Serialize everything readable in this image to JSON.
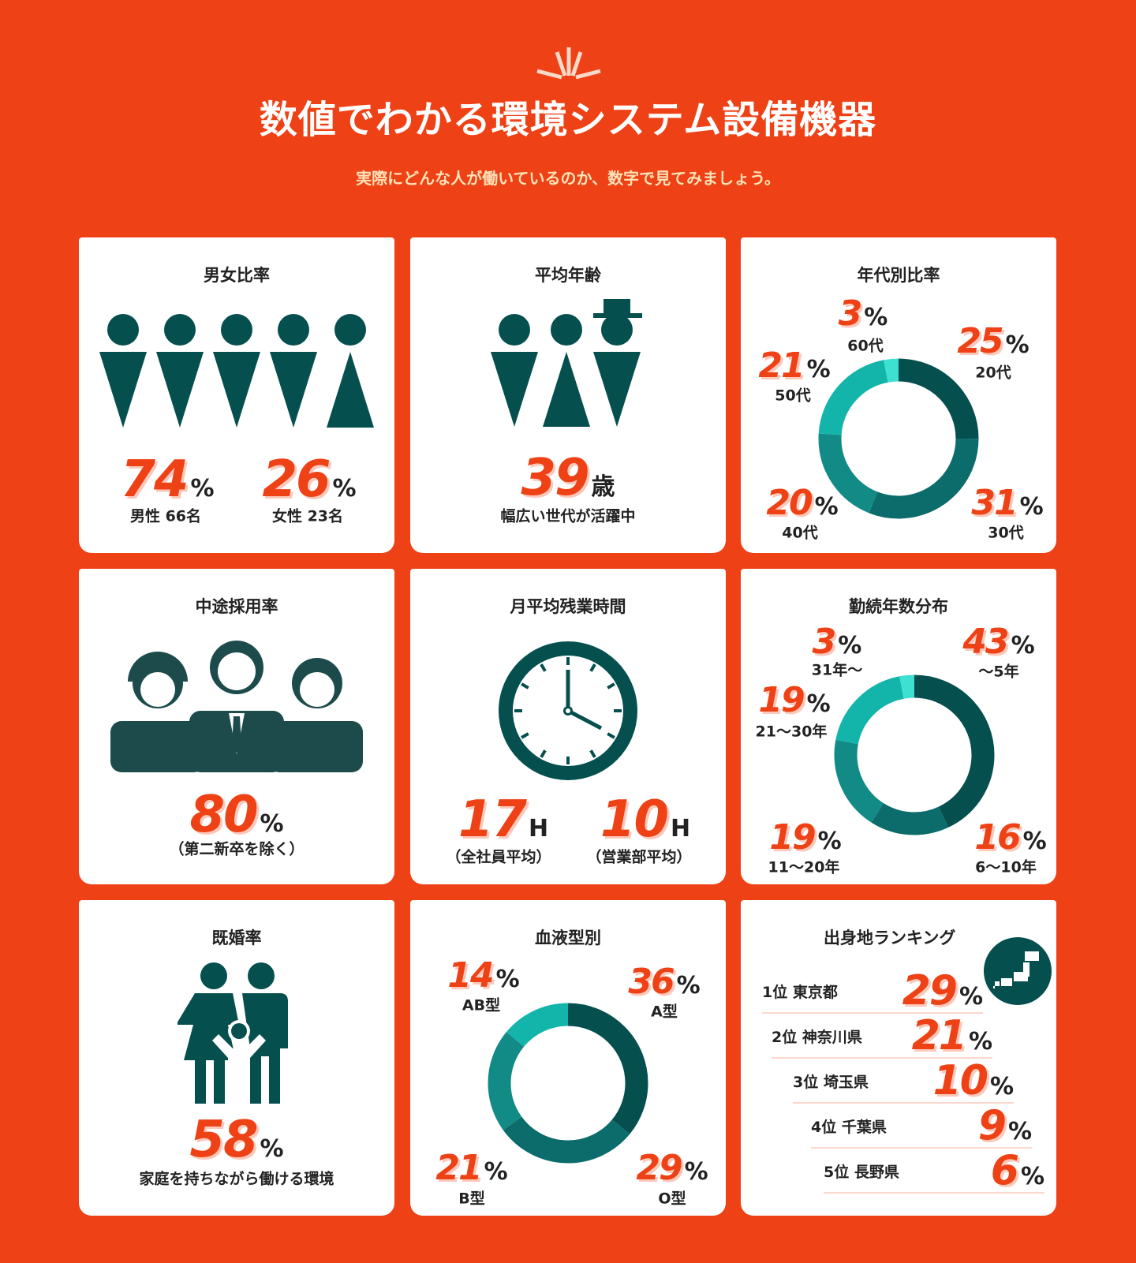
{
  "header": {
    "title": "数値でわかる環境システム設備機器",
    "subtitle": "実際にどんな人が働いているのか、数字で見てみましょう。"
  },
  "gender": {
    "title": "男女比率",
    "male_value": "74",
    "male_label": "男性 66名",
    "female_value": "26",
    "female_label": "女性 23名",
    "unit": "%"
  },
  "age": {
    "title": "平均年齢",
    "value": "39",
    "unit": "歳",
    "label": "幅広い世代が活躍中"
  },
  "age_dist": {
    "title": "年代別比率",
    "unit": "%",
    "items": [
      {
        "label": "20代",
        "value": "25"
      },
      {
        "label": "30代",
        "value": "31"
      },
      {
        "label": "40代",
        "value": "20"
      },
      {
        "label": "50代",
        "value": "21"
      },
      {
        "label": "60代",
        "value": "3"
      }
    ]
  },
  "midcareer": {
    "title": "中途採用率",
    "value": "80",
    "unit": "%",
    "label": "（第二新卒を除く）"
  },
  "overtime": {
    "title": "月平均残業時間",
    "unit": "H",
    "all_value": "17",
    "all_label": "（全社員平均）",
    "sales_value": "10",
    "sales_label": "（営業部平均）"
  },
  "tenure": {
    "title": "勤続年数分布",
    "unit": "%",
    "items": [
      {
        "label": "～5年",
        "value": "43"
      },
      {
        "label": "6～10年",
        "value": "16"
      },
      {
        "label": "11～20年",
        "value": "19"
      },
      {
        "label": "21～30年",
        "value": "19"
      },
      {
        "label": "31年～",
        "value": "3"
      }
    ]
  },
  "married": {
    "title": "既婚率",
    "value": "58",
    "unit": "%",
    "label": "家庭を持ちながら働ける環境"
  },
  "blood": {
    "title": "血液型別",
    "unit": "%",
    "items": [
      {
        "label": "A型",
        "value": "36"
      },
      {
        "label": "O型",
        "value": "29"
      },
      {
        "label": "B型",
        "value": "21"
      },
      {
        "label": "AB型",
        "value": "14"
      }
    ]
  },
  "origin": {
    "title": "出身地ランキング",
    "unit": "%",
    "items": [
      {
        "label": "1位 東京都",
        "value": "29"
      },
      {
        "label": "2位 神奈川県",
        "value": "21"
      },
      {
        "label": "3位 埼玉県",
        "value": "10"
      },
      {
        "label": "4位 千葉県",
        "value": "9"
      },
      {
        "label": "5位 長野県",
        "value": "6"
      }
    ]
  },
  "colors": {
    "accent": "#ee4115",
    "teal_dark": "#064f4f",
    "teal2": "#0b6c6b",
    "teal3": "#128a86",
    "teal4": "#13b4aa",
    "teal5": "#3ee0d2"
  }
}
